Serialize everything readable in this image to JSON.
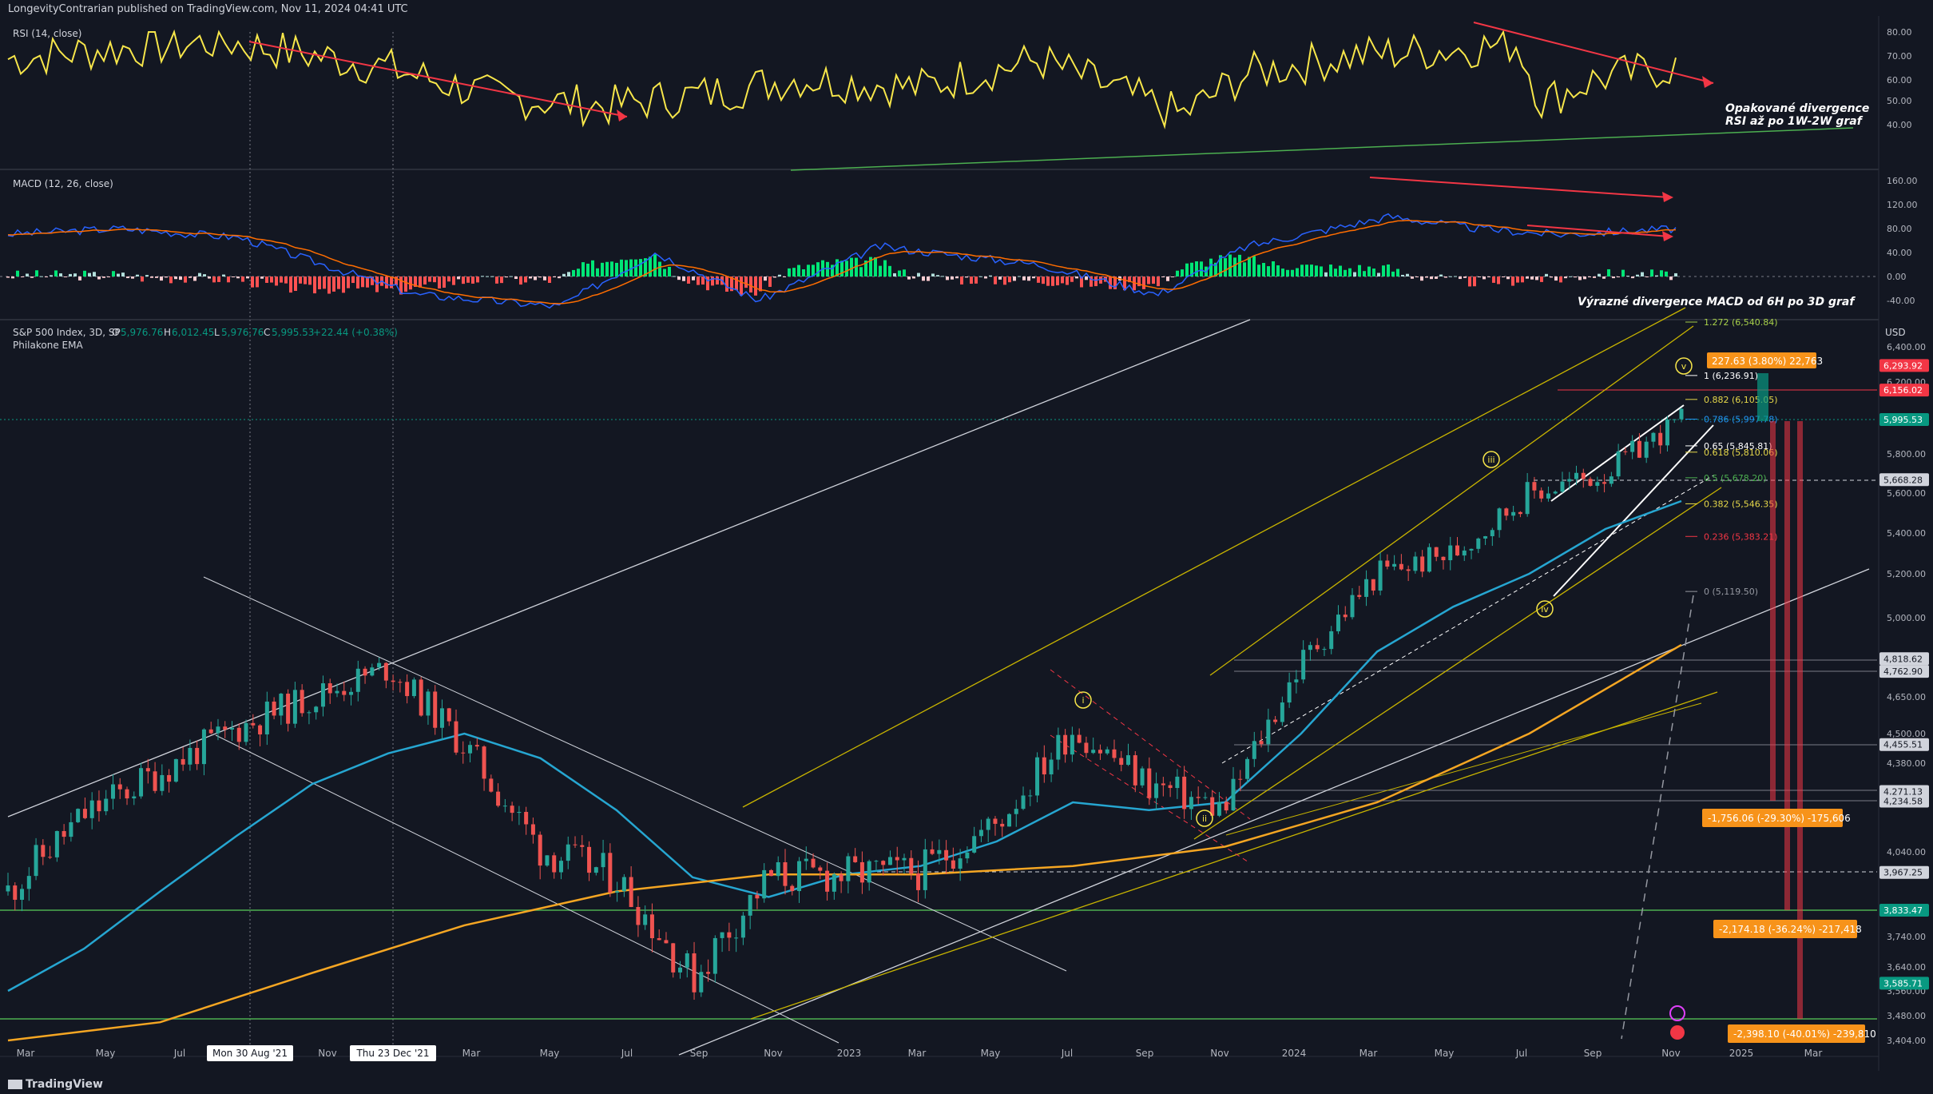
{
  "header": {
    "published": "LongevityContrarian published on TradingView.com, Nov 11, 2024 04:41 UTC"
  },
  "footer": {
    "brand": "TradingView"
  },
  "rsi": {
    "label": "RSI (14, close)",
    "ticks": [
      "80.00",
      "70.00",
      "60.00",
      "50.00",
      "40.00"
    ],
    "note1": "Opakované divergence",
    "note2": "RSI až po 1W-2W graf"
  },
  "macd": {
    "label": "MACD (12, 26, close)",
    "ticks": [
      "160.00",
      "120.00",
      "80.00",
      "40.00",
      "0.00",
      "-40.00"
    ],
    "note": "Výrazné divergence MACD od 6H po 3D graf"
  },
  "main": {
    "symbol": "S&P 500 Index, 3D, SP",
    "o_label": "O",
    "o": "5,976.76",
    "h_label": "H",
    "h": "6,012.45",
    "l_label": "L",
    "l": "5,976.76",
    "c_label": "C",
    "c": "5,995.53",
    "chg": "+22.44 (+0.38%)",
    "ema": "Philakone EMA",
    "currency": "USD"
  },
  "price_ticks": [
    "6,400.00",
    "6,200.00",
    "5,800.00",
    "5,600.00",
    "5,400.00",
    "5,200.00",
    "5,000.00",
    "4,650.00",
    "4,500.00",
    "4,380.00",
    "4,040.00",
    "3,740.00",
    "3,640.00",
    "3,560.00",
    "3,480.00",
    "3,404.00"
  ],
  "price_boxes": [
    {
      "text": "6,293.92",
      "color": "#f23645"
    },
    {
      "text": "6,156.02",
      "color": "#f23645"
    },
    {
      "text": "5,995.53",
      "color": "#089981"
    },
    {
      "text": "5,668.28",
      "color": "#d1d4dc"
    },
    {
      "text": "4,818.62",
      "color": "#d1d4dc"
    },
    {
      "text": "4,762.90",
      "color": "#d1d4dc"
    },
    {
      "text": "4,455.51",
      "color": "#d1d4dc"
    },
    {
      "text": "4,271.13",
      "color": "#d1d4dc"
    },
    {
      "text": "4,234.58",
      "color": "#d1d4dc"
    },
    {
      "text": "3,967.25",
      "color": "#d1d4dc"
    },
    {
      "text": "3,833.47",
      "color": "#089981"
    },
    {
      "text": "3,585.71",
      "color": "#089981"
    }
  ],
  "fib_levels": [
    {
      "label": "1.272 (6,540.84)",
      "color": "#a8d14a"
    },
    {
      "label": "1 (6,236.91)",
      "color": "#ffffff"
    },
    {
      "label": "0.882 (6,105.05)",
      "color": "#e6d84a"
    },
    {
      "label": "0.786 (5,997.78)",
      "color": "#2196f3"
    },
    {
      "label": "0.65 (5,845.81)",
      "color": "#ffffff"
    },
    {
      "label": "0.618 (5,810.06)",
      "color": "#e6d84a"
    },
    {
      "label": "0.5 (5,678.20)",
      "color": "#4caf50"
    },
    {
      "label": "0.382 (5,546.35)",
      "color": "#e6d84a"
    },
    {
      "label": "0.236 (5,383.21)",
      "color": "#f23645"
    },
    {
      "label": "0 (5,119.50)",
      "color": "#9598a1"
    }
  ],
  "measures": [
    {
      "text": "227.63 (3.80%) 22,763"
    },
    {
      "text": "-1,756.06 (-29.30%) -175,606"
    },
    {
      "text": "-2,174.18 (-36.24%) -217,418"
    },
    {
      "text": "-2,398.10 (-40.01%) -239,810"
    }
  ],
  "wave_labels": [
    "i",
    "ii",
    "iii",
    "iv",
    "v"
  ],
  "time_labels": [
    "Mar",
    "May",
    "Jul",
    "Mon 30 Aug '21",
    "Nov",
    "Thu 23 Dec '21",
    "Mar",
    "May",
    "Jul",
    "Sep",
    "Nov",
    "2023",
    "Mar",
    "May",
    "Jul",
    "Sep",
    "Nov",
    "2024",
    "Mar",
    "May",
    "Jul",
    "Sep",
    "Nov",
    "2025",
    "Mar"
  ],
  "chart_data": {
    "type": "line",
    "title": "S&P 500 Index, 3D, SP",
    "y_range": [
      3404,
      6540
    ],
    "y_scale": "linear",
    "series": [
      {
        "name": "S&P 500 Index",
        "x": [
          "2021-03",
          "2021-05",
          "2021-07",
          "2021-09",
          "2021-11",
          "2022-01",
          "2022-03",
          "2022-05",
          "2022-07",
          "2022-09",
          "2022-11",
          "2023-01",
          "2023-03",
          "2023-05",
          "2023-07",
          "2023-09",
          "2023-11",
          "2024-01",
          "2024-03",
          "2024-05",
          "2024-07",
          "2024-09",
          "2024-11"
        ],
        "y": [
          3900,
          4180,
          4350,
          4520,
          4650,
          4780,
          4450,
          4050,
          3950,
          3600,
          3950,
          3960,
          3970,
          4150,
          4520,
          4300,
          4200,
          4800,
          5200,
          5300,
          5600,
          5700,
          5995
        ]
      },
      {
        "name": "Philakone EMA",
        "x": [
          "2021-03",
          "2021-07",
          "2021-11",
          "2022-03",
          "2022-07",
          "2022-11",
          "2023-03",
          "2023-07",
          "2023-11",
          "2024-03",
          "2024-07",
          "2024-11"
        ],
        "y": [
          3550,
          3900,
          4250,
          4420,
          4180,
          3960,
          3990,
          4220,
          4230,
          4800,
          5250,
          5500
        ]
      }
    ]
  }
}
